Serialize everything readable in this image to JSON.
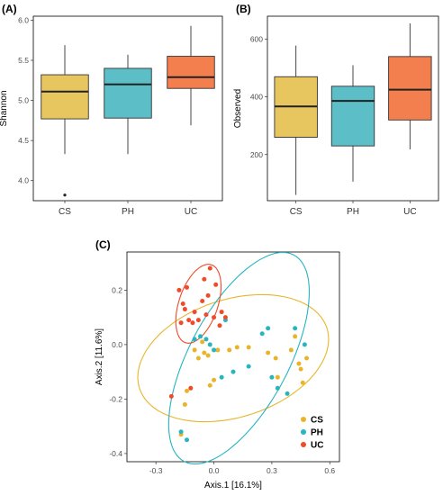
{
  "panels": {
    "a": "(A)",
    "b": "(B)",
    "c": "(C)"
  },
  "chart_data": [
    {
      "type": "box",
      "panel": "(A)",
      "ylabel": "Shannon",
      "xlabel": "",
      "ylim": [
        3.75,
        6.05
      ],
      "yticks": [
        "4.0",
        "4.5",
        "5.0",
        "5.5",
        "6.0"
      ],
      "ytick_values": [
        4.0,
        4.5,
        5.0,
        5.5,
        6.0
      ],
      "categories": [
        "CS",
        "PH",
        "UC"
      ],
      "colors": [
        "#e8c65f",
        "#5cbec7",
        "#f47f4e"
      ],
      "boxes": [
        {
          "name": "CS",
          "whisker_low": 4.33,
          "q1": 4.77,
          "median": 5.11,
          "q3": 5.32,
          "whisker_high": 5.69,
          "outliers": [
            3.82
          ]
        },
        {
          "name": "PH",
          "whisker_low": 4.33,
          "q1": 4.78,
          "median": 5.2,
          "q3": 5.4,
          "whisker_high": 5.57,
          "outliers": []
        },
        {
          "name": "UC",
          "whisker_low": 4.69,
          "q1": 5.15,
          "median": 5.29,
          "q3": 5.55,
          "whisker_high": 5.93,
          "outliers": []
        }
      ],
      "grid": false
    },
    {
      "type": "box",
      "panel": "(B)",
      "ylabel": "Observed",
      "xlabel": "",
      "ylim": [
        40,
        680
      ],
      "yticks": [
        "200",
        "400",
        "600"
      ],
      "ytick_values": [
        200,
        400,
        600
      ],
      "categories": [
        "CS",
        "PH",
        "UC"
      ],
      "colors": [
        "#e8c65f",
        "#5cbec7",
        "#f47f4e"
      ],
      "boxes": [
        {
          "name": "CS",
          "whisker_low": 60,
          "q1": 260,
          "median": 367,
          "q3": 470,
          "whisker_high": 578,
          "outliers": []
        },
        {
          "name": "PH",
          "whisker_low": 106,
          "q1": 230,
          "median": 386,
          "q3": 437,
          "whisker_high": 510,
          "outliers": []
        },
        {
          "name": "UC",
          "whisker_low": 218,
          "q1": 320,
          "median": 425,
          "q3": 540,
          "whisker_high": 655,
          "outliers": []
        }
      ],
      "grid": false
    },
    {
      "type": "scatter",
      "panel": "(C)",
      "xlabel": "Axis.1  [16.1%]",
      "ylabel": "Axis.2  [11.6%]",
      "xlim": [
        -0.45,
        0.65
      ],
      "ylim": [
        -0.43,
        0.34
      ],
      "xticks": [
        "-0.3",
        "0.0",
        "0.3",
        "0.6"
      ],
      "xtick_values": [
        -0.3,
        0.0,
        0.3,
        0.6
      ],
      "yticks": [
        "-0.4",
        "-0.2",
        "0.0",
        "0.2"
      ],
      "ytick_values": [
        -0.4,
        -0.2,
        0.0,
        0.2
      ],
      "legend": {
        "position": "bottom-right",
        "entries": [
          "CS",
          "PH",
          "UC"
        ]
      },
      "series": [
        {
          "name": "CS",
          "color": "#e8b52a",
          "points": [
            [
              -0.15,
              -0.22
            ],
            [
              -0.14,
              -0.17
            ],
            [
              -0.1,
              -0.02
            ],
            [
              -0.08,
              -0.05
            ],
            [
              -0.06,
              0.01
            ],
            [
              -0.05,
              -0.03
            ],
            [
              -0.03,
              -0.04
            ],
            [
              -0.02,
              -0.15
            ],
            [
              0.0,
              -0.13
            ],
            [
              0.02,
              -0.02
            ],
            [
              0.08,
              -0.02
            ],
            [
              0.12,
              -0.01
            ],
            [
              0.18,
              -0.01
            ],
            [
              0.28,
              -0.03
            ],
            [
              0.32,
              -0.05
            ],
            [
              0.33,
              -0.12
            ],
            [
              0.4,
              -0.02
            ],
            [
              0.42,
              0.03
            ],
            [
              0.44,
              -0.07
            ],
            [
              0.45,
              -0.09
            ],
            [
              0.46,
              -0.14
            ],
            [
              0.48,
              -0.05
            ],
            [
              -0.17,
              -0.33
            ]
          ]
        },
        {
          "name": "PH",
          "color": "#26b5c1",
          "points": [
            [
              -0.17,
              -0.32
            ],
            [
              -0.14,
              -0.35
            ],
            [
              -0.1,
              0.02
            ],
            [
              -0.07,
              0.03
            ],
            [
              -0.04,
              0.02
            ],
            [
              -0.02,
              0.0
            ],
            [
              0.0,
              -0.02
            ],
            [
              0.04,
              -0.12
            ],
            [
              0.06,
              0.09
            ],
            [
              0.1,
              -0.1
            ],
            [
              0.18,
              -0.08
            ],
            [
              0.25,
              0.04
            ],
            [
              0.28,
              0.06
            ],
            [
              0.33,
              -0.16
            ],
            [
              0.38,
              -0.18
            ],
            [
              0.42,
              0.06
            ],
            [
              0.47,
              0.0
            ],
            [
              0.3,
              -0.12
            ]
          ]
        },
        {
          "name": "UC",
          "color": "#ef4a2a",
          "points": [
            [
              -0.22,
              -0.19
            ],
            [
              -0.18,
              0.2
            ],
            [
              -0.17,
              0.08
            ],
            [
              -0.16,
              0.15
            ],
            [
              -0.15,
              0.13
            ],
            [
              -0.14,
              0.21
            ],
            [
              -0.13,
              0.09
            ],
            [
              -0.11,
              0.08
            ],
            [
              -0.1,
              0.12
            ],
            [
              -0.08,
              0.09
            ],
            [
              -0.06,
              0.16
            ],
            [
              -0.05,
              0.24
            ],
            [
              -0.04,
              0.11
            ],
            [
              -0.03,
              0.18
            ],
            [
              -0.02,
              0.28
            ],
            [
              0.0,
              0.1
            ],
            [
              0.01,
              0.22
            ],
            [
              0.03,
              0.07
            ],
            [
              0.04,
              0.12
            ],
            [
              0.06,
              0.1
            ],
            [
              -0.12,
              -0.16
            ]
          ]
        }
      ],
      "ellipses": [
        {
          "name": "CS",
          "color": "#e8b52a",
          "center": [
            0.1,
            -0.05
          ],
          "rx": 0.5,
          "ry": 0.22,
          "angle_deg": 10
        },
        {
          "name": "PH",
          "color": "#26b5c1",
          "center": [
            0.13,
            -0.05
          ],
          "rx": 0.48,
          "ry": 0.23,
          "angle_deg": 48
        },
        {
          "name": "UC",
          "color": "#ef4a2a",
          "center": [
            -0.08,
            0.15
          ],
          "rx": 0.16,
          "ry": 0.095,
          "angle_deg": 58
        }
      ],
      "grid": false
    }
  ]
}
